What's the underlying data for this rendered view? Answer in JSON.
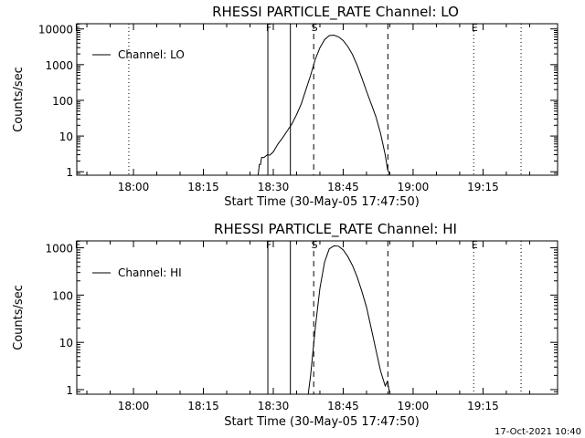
{
  "footer_timestamp": "17-Oct-2021 10:40",
  "chart_data": [
    {
      "type": "line",
      "title": "RHESSI PARTICLE_RATE Channel: LO",
      "xlabel": "Start Time (30-May-05 17:47:50)",
      "ylabel": "Counts/sec",
      "y_scale": "log",
      "ylim": [
        0.8,
        14000
      ],
      "xlim": [
        "17:47:50",
        "19:31:00"
      ],
      "x_ticks": [
        "18:00",
        "18:15",
        "18:30",
        "18:45",
        "19:00",
        "19:15"
      ],
      "y_ticks": [
        "1",
        "10",
        "100",
        "1000",
        "10000"
      ],
      "legend": {
        "position": "top-left",
        "entries": [
          "Channel: LO"
        ]
      },
      "series": [
        {
          "name": "Channel: LO",
          "x": [
            "18:26:45",
            "18:27:00",
            "18:27:15",
            "18:27:30",
            "18:28:00",
            "18:28:45",
            "18:29:15",
            "18:30:00",
            "18:31:00",
            "18:32:00",
            "18:33:00",
            "18:34:00",
            "18:35:00",
            "18:36:00",
            "18:37:00",
            "18:38:00",
            "18:39:00",
            "18:40:00",
            "18:41:00",
            "18:42:00",
            "18:43:00",
            "18:44:00",
            "18:45:00",
            "18:46:00",
            "18:47:00",
            "18:48:00",
            "18:49:00",
            "18:50:00",
            "18:51:00",
            "18:52:00",
            "18:53:00",
            "18:54:00",
            "18:54:30",
            "18:55:00"
          ],
          "values": [
            0.8,
            1.6,
            1.6,
            2.5,
            2.5,
            3,
            2.9,
            3.6,
            6,
            9,
            14,
            22,
            40,
            80,
            200,
            500,
            1400,
            3000,
            5000,
            6500,
            6700,
            6000,
            4700,
            3200,
            1900,
            950,
            420,
            180,
            80,
            35,
            12,
            3,
            1.2,
            0.8
          ]
        }
      ],
      "markers": [
        {
          "label": "F",
          "time": "17:47:50",
          "style": "dotted"
        },
        {
          "label": "",
          "time": "17:59:00",
          "style": "dotted"
        },
        {
          "label": "F",
          "time": "18:28:50",
          "style": "solid"
        },
        {
          "label": "",
          "time": "18:33:40",
          "style": "solid"
        },
        {
          "label": "S",
          "time": "18:38:40",
          "style": "dashed"
        },
        {
          "label": "",
          "time": "18:54:35",
          "style": "dashed"
        },
        {
          "label": "E",
          "time": "19:13:00",
          "style": "dotted"
        },
        {
          "label": "",
          "time": "19:23:10",
          "style": "dotted"
        }
      ]
    },
    {
      "type": "line",
      "title": "RHESSI PARTICLE_RATE Channel: HI",
      "xlabel": "Start Time (30-May-05 17:47:50)",
      "ylabel": "Counts/sec",
      "y_scale": "log",
      "ylim": [
        0.8,
        1400
      ],
      "xlim": [
        "17:47:50",
        "19:31:00"
      ],
      "x_ticks": [
        "18:00",
        "18:15",
        "18:30",
        "18:45",
        "19:00",
        "19:15"
      ],
      "y_ticks": [
        "1",
        "10",
        "100",
        "1000"
      ],
      "legend": {
        "position": "top-left",
        "entries": [
          "Channel: HI"
        ]
      },
      "series": [
        {
          "name": "Channel: HI",
          "x": [
            "18:37:30",
            "18:38:00",
            "18:39:00",
            "18:40:00",
            "18:41:00",
            "18:42:00",
            "18:43:00",
            "18:44:00",
            "18:45:00",
            "18:46:00",
            "18:47:00",
            "18:48:00",
            "18:49:00",
            "18:50:00",
            "18:51:00",
            "18:52:00",
            "18:53:00",
            "18:54:00",
            "18:54:30",
            "18:55:00"
          ],
          "values": [
            0.8,
            2,
            20,
            140,
            500,
            950,
            1100,
            1080,
            900,
            650,
            420,
            240,
            120,
            55,
            20,
            7,
            2.5,
            1.2,
            1.5,
            0.8
          ]
        }
      ],
      "markers": [
        {
          "label": "F",
          "time": "17:47:50",
          "style": "dotted"
        },
        {
          "label": "",
          "time": "19:23:10",
          "style": "dotted"
        },
        {
          "label": "F",
          "time": "18:28:50",
          "style": "solid"
        },
        {
          "label": "",
          "time": "18:33:40",
          "style": "solid"
        },
        {
          "label": "S",
          "time": "18:38:40",
          "style": "dashed"
        },
        {
          "label": "",
          "time": "18:54:35",
          "style": "dashed"
        },
        {
          "label": "E",
          "time": "19:13:00",
          "style": "dotted"
        },
        {
          "label": "",
          "time": "19:23:10",
          "style": "dotted"
        }
      ]
    }
  ]
}
